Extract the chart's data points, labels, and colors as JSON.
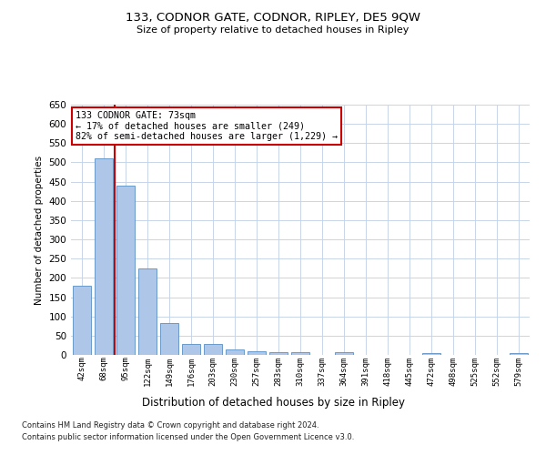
{
  "title": "133, CODNOR GATE, CODNOR, RIPLEY, DE5 9QW",
  "subtitle": "Size of property relative to detached houses in Ripley",
  "xlabel": "Distribution of detached houses by size in Ripley",
  "ylabel": "Number of detached properties",
  "categories": [
    "42sqm",
    "68sqm",
    "95sqm",
    "122sqm",
    "149sqm",
    "176sqm",
    "203sqm",
    "230sqm",
    "257sqm",
    "283sqm",
    "310sqm",
    "337sqm",
    "364sqm",
    "391sqm",
    "418sqm",
    "445sqm",
    "472sqm",
    "498sqm",
    "525sqm",
    "552sqm",
    "579sqm"
  ],
  "values": [
    180,
    510,
    440,
    225,
    83,
    28,
    28,
    15,
    10,
    8,
    8,
    0,
    8,
    0,
    0,
    0,
    5,
    0,
    0,
    0,
    5
  ],
  "bar_color": "#aec6e8",
  "bar_edge_color": "#5a8fc2",
  "highlight_line_color": "#cc0000",
  "annotation_title": "133 CODNOR GATE: 73sqm",
  "annotation_line1": "← 17% of detached houses are smaller (249)",
  "annotation_line2": "82% of semi-detached houses are larger (1,229) →",
  "annotation_box_color": "#ffffff",
  "annotation_box_edge": "#cc0000",
  "ylim": [
    0,
    650
  ],
  "yticks": [
    0,
    50,
    100,
    150,
    200,
    250,
    300,
    350,
    400,
    450,
    500,
    550,
    600,
    650
  ],
  "footer1": "Contains HM Land Registry data © Crown copyright and database right 2024.",
  "footer2": "Contains public sector information licensed under the Open Government Licence v3.0.",
  "bg_color": "#ffffff",
  "grid_color": "#c8d4e8"
}
